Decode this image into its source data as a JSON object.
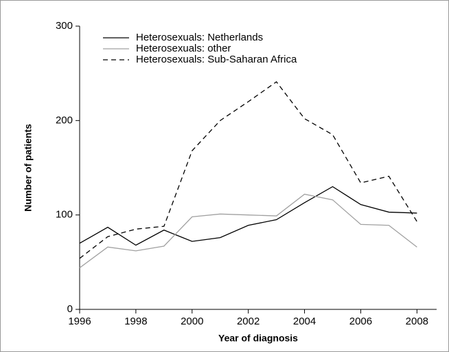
{
  "chart_data": {
    "type": "line",
    "x_label": "Year of diagnosis",
    "y_label": "Number of patients",
    "x": [
      1996,
      1997,
      1998,
      1999,
      2000,
      2001,
      2002,
      2003,
      2004,
      2005,
      2006,
      2007,
      2008
    ],
    "series": [
      {
        "name": "Heterosexuals: Netherlands",
        "color": "#000000",
        "dash": "solid",
        "values": [
          70,
          87,
          68,
          84,
          72,
          76,
          89,
          95,
          113,
          130,
          111,
          103,
          102
        ]
      },
      {
        "name": "Heterosexuals: other",
        "color": "#a0a0a0",
        "dash": "solid",
        "values": [
          44,
          66,
          62,
          67,
          98,
          101,
          100,
          99,
          122,
          116,
          90,
          89,
          66
        ]
      },
      {
        "name": "Heterosexuals: Sub-Saharan Africa",
        "color": "#000000",
        "dash": "dashed",
        "values": [
          54,
          77,
          85,
          88,
          168,
          200,
          220,
          241,
          202,
          185,
          134,
          141,
          93
        ]
      }
    ],
    "xlim": [
      1996,
      2008.7
    ],
    "xticks": [
      1996,
      1998,
      2000,
      2002,
      2004,
      2006,
      2008
    ],
    "ylim": [
      0,
      300
    ],
    "yticks": [
      0,
      100,
      200,
      300
    ],
    "legend": "top-left",
    "grid": false
  }
}
